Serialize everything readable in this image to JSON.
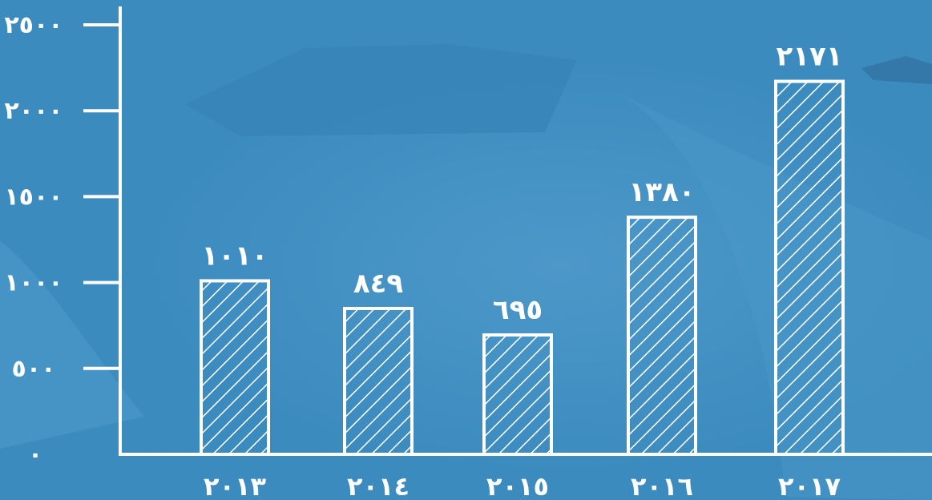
{
  "chart_data": {
    "type": "bar",
    "categories": [
      "٢٠١٣",
      "٢٠١٤",
      "٢٠١٥",
      "٢٠١٦",
      "٢٠١٧"
    ],
    "values": [
      1010,
      849,
      695,
      1380,
      2171
    ],
    "value_labels": [
      "١٠١٠",
      "٨٤٩",
      "٦٩٥",
      "١٣٨٠",
      "٢١٧١"
    ],
    "yticks": [
      0,
      500,
      1000,
      1500,
      2000,
      2500
    ],
    "ytick_labels": [
      "٠",
      "٥٠٠",
      "١٠٠٠",
      "١٥٠٠",
      "٢٠٠٠",
      "٢٥٠٠"
    ],
    "ylim": [
      0,
      2500
    ],
    "grid": false,
    "legend": "none",
    "bar_fill": "diagonal-hatch",
    "colors": {
      "background": "#3c8bbf",
      "foreground": "#ffffff"
    }
  }
}
